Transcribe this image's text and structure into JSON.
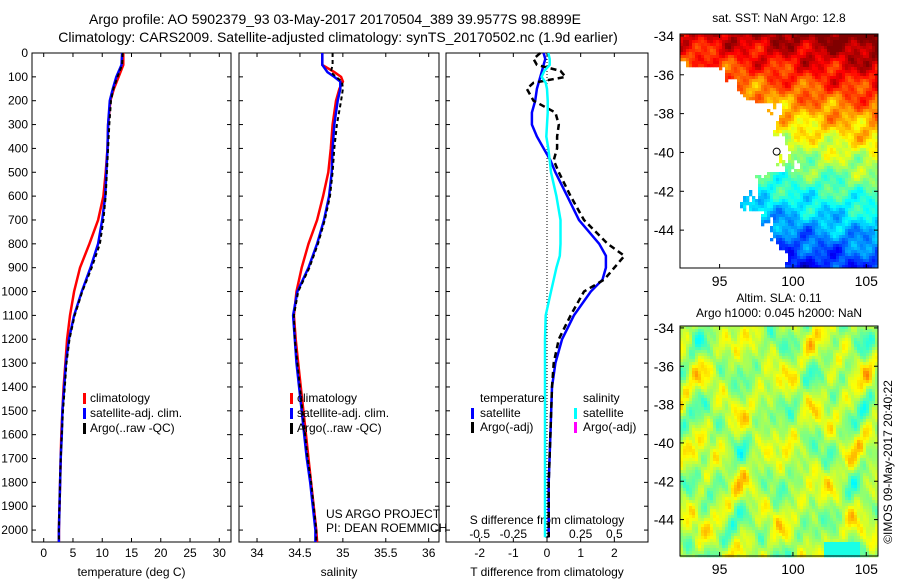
{
  "title": {
    "line1": "Argo profile: AO 5902379_93 03-May-2017 20170504_389 39.9577S 98.8899E",
    "line2": "Climatology: CARS2009. Satellite-adjusted climatology: synTS_20170502.nc (1.9d earlier)"
  },
  "annotations": {
    "project": "US ARGO PROJECT",
    "pi": "PI: DEAN ROEMMICH",
    "imos": "©IMOS 09-May-2017 20:40:22"
  },
  "chart_data": [
    {
      "id": "temperature",
      "type": "line",
      "xlabel": "temperature (deg C)",
      "ylabel": "depth",
      "xlim": [
        -2,
        32
      ],
      "ylim": [
        2050,
        0
      ],
      "xticks": [
        "0",
        "5",
        "10",
        "15",
        "20",
        "25",
        "30"
      ],
      "yticks": [
        "0",
        "100",
        "200",
        "300",
        "400",
        "500",
        "600",
        "700",
        "800",
        "900",
        "1000",
        "1100",
        "1200",
        "1300",
        "1400",
        "1500",
        "1600",
        "1700",
        "1800",
        "1900",
        "2000"
      ],
      "depth": [
        0,
        50,
        100,
        150,
        200,
        300,
        400,
        500,
        600,
        700,
        800,
        900,
        1000,
        1100,
        1200,
        1300,
        1400,
        1500,
        1600,
        1700,
        1800,
        1900,
        2000,
        2050
      ],
      "series": [
        {
          "name": "climatology",
          "color": "#ff0000",
          "style": "solid",
          "values": [
            13.6,
            13.6,
            12.8,
            12.0,
            11.4,
            11.0,
            10.9,
            10.6,
            10.2,
            9.3,
            7.8,
            6.2,
            5.2,
            4.5,
            4.0,
            3.7,
            3.4,
            3.2,
            3.0,
            2.9,
            2.8,
            2.7,
            2.6,
            2.6
          ]
        },
        {
          "name": "satellite-adj. clim.",
          "color": "#0000ff",
          "style": "solid",
          "values": [
            13.4,
            13.3,
            12.4,
            11.8,
            11.3,
            11.0,
            10.9,
            10.7,
            10.5,
            10.0,
            9.3,
            8.0,
            6.5,
            5.2,
            4.3,
            3.8,
            3.5,
            3.2,
            3.1,
            2.9,
            2.8,
            2.7,
            2.6,
            2.6
          ]
        },
        {
          "name": "Argo(..raw -QC)",
          "color": "#000000",
          "style": "dashed",
          "values": [
            13.5,
            13.4,
            12.6,
            11.9,
            11.5,
            11.2,
            11.0,
            10.8,
            10.6,
            10.2,
            9.6,
            8.2,
            6.6,
            5.3,
            4.4,
            3.9,
            3.6,
            3.3,
            3.1,
            2.9,
            2.8,
            2.7,
            2.6,
            2.6
          ]
        }
      ],
      "legend": "center-right"
    },
    {
      "id": "salinity",
      "type": "line",
      "xlabel": "salinity",
      "xlim": [
        33.79,
        36.12
      ],
      "ylim": [
        2050,
        0
      ],
      "xticks": [
        "34",
        "34.5",
        "35",
        "35.5",
        "36"
      ],
      "depth": [
        0,
        50,
        80,
        100,
        120,
        150,
        200,
        300,
        400,
        500,
        600,
        700,
        800,
        900,
        1000,
        1100,
        1200,
        1300,
        1400,
        1500,
        1600,
        1700,
        1800,
        1900,
        2000,
        2050
      ],
      "series": [
        {
          "name": "climatology",
          "color": "#ff0000",
          "style": "solid",
          "values": [
            34.76,
            34.76,
            34.9,
            34.98,
            35.0,
            34.96,
            34.92,
            34.88,
            34.86,
            34.83,
            34.77,
            34.7,
            34.6,
            34.52,
            34.46,
            34.43,
            34.45,
            34.48,
            34.51,
            34.54,
            34.57,
            34.6,
            34.63,
            34.66,
            34.69,
            34.7
          ]
        },
        {
          "name": "satellite-adj. clim.",
          "color": "#0000ff",
          "style": "solid",
          "values": [
            34.76,
            34.76,
            34.82,
            34.9,
            34.97,
            34.97,
            34.94,
            34.9,
            34.88,
            34.87,
            34.84,
            34.78,
            34.7,
            34.6,
            34.47,
            34.42,
            34.44,
            34.46,
            34.49,
            34.52,
            34.55,
            34.58,
            34.62,
            34.65,
            34.68,
            34.68
          ]
        },
        {
          "name": "Argo(..raw -QC)",
          "color": "#000000",
          "style": "dashed",
          "values": [
            34.88,
            34.88,
            34.86,
            34.92,
            34.99,
            35.0,
            34.98,
            34.93,
            34.9,
            34.88,
            34.85,
            34.79,
            34.71,
            34.61,
            34.48,
            34.43,
            34.44,
            34.47,
            34.5,
            34.53,
            34.56,
            34.59,
            34.63,
            34.66,
            34.69,
            34.69
          ]
        }
      ],
      "legend": "center-right"
    },
    {
      "id": "difference",
      "type": "line",
      "xlabel": "T difference from climatology",
      "x2label": "S difference from climatology",
      "xlim": [
        -3,
        3
      ],
      "x2lim": [
        -0.75,
        0.75
      ],
      "ylim": [
        2050,
        0
      ],
      "xticks": [
        "-2",
        "-1",
        "0",
        "1",
        "2"
      ],
      "x2ticks": [
        "-0.5",
        "-0.25",
        "0",
        "0.25",
        "0.5"
      ],
      "depth": [
        0,
        25,
        50,
        75,
        100,
        125,
        150,
        200,
        250,
        300,
        350,
        400,
        450,
        500,
        600,
        700,
        800,
        850,
        900,
        950,
        1000,
        1100,
        1200,
        1300,
        1400,
        1600,
        1800,
        2000,
        2030
      ],
      "series": [
        {
          "name": "satellite",
          "group": "temperature",
          "axis": "T",
          "color": "#0000ff",
          "style": "solid",
          "values": [
            -0.1,
            -0.05,
            -0.1,
            -0.15,
            -0.2,
            -0.25,
            -0.3,
            -0.35,
            -0.45,
            -0.45,
            -0.3,
            -0.1,
            0.1,
            0.25,
            0.6,
            0.95,
            1.55,
            1.75,
            1.75,
            1.65,
            1.3,
            0.8,
            0.45,
            0.25,
            0.15,
            0.1,
            0.05,
            0.05,
            0.05
          ]
        },
        {
          "name": "Argo(-adj)",
          "group": "temperature",
          "axis": "T",
          "color": "#000000",
          "style": "dashed",
          "values": [
            -0.2,
            -0.4,
            -0.3,
            0.4,
            0.55,
            -0.4,
            -0.6,
            -0.4,
            0.25,
            0.35,
            0.3,
            0.3,
            0.2,
            0.35,
            0.7,
            1.1,
            1.8,
            2.3,
            2.0,
            1.7,
            1.1,
            0.7,
            0.35,
            0.2,
            0.15,
            0.1,
            0.05,
            0.05,
            0.05
          ]
        },
        {
          "name": "satellite",
          "group": "salinity",
          "axis": "S",
          "color": "#00ffff",
          "style": "solid",
          "values": [
            0.01,
            0.02,
            0.02,
            -0.02,
            -0.04,
            -0.01,
            0.0,
            0.005,
            0.005,
            0.0,
            -0.005,
            0.01,
            0.02,
            0.03,
            0.07,
            0.1,
            0.1,
            0.095,
            0.07,
            0.05,
            0.03,
            -0.01,
            -0.015,
            -0.015,
            -0.015,
            -0.015,
            -0.015,
            -0.015,
            -0.015
          ]
        },
        {
          "name": "Argo(-adj)",
          "group": "salinity",
          "axis": "S",
          "color": "#ff00ff",
          "style": "solid",
          "values": []
        }
      ],
      "legend_headers": [
        "temperature",
        "salinity"
      ]
    },
    {
      "id": "sst-map",
      "type": "heatmap",
      "title": "sat. SST: NaN Argo: 12.8",
      "xlim": [
        92.3,
        105.8
      ],
      "ylim": [
        -45.95,
        -33.9
      ],
      "xticks": [
        "95",
        "100",
        "105"
      ],
      "yticks": [
        "-34",
        "-36",
        "-38",
        "-40",
        "-42",
        "-44"
      ],
      "colormap": "jet",
      "argo_position": [
        98.89,
        -39.96
      ]
    },
    {
      "id": "sla-map",
      "type": "heatmap",
      "title": "Altim. SLA: 0.11",
      "subtitle": "Argo h1000: 0.045 h2000: NaN",
      "xlim": [
        92.3,
        105.8
      ],
      "ylim": [
        -45.9,
        -33.9
      ],
      "xticks": [
        "95",
        "100",
        "105"
      ],
      "yticks": [
        "-34",
        "-36",
        "-38",
        "-40",
        "-42",
        "-44"
      ],
      "colormap": "jet"
    }
  ]
}
